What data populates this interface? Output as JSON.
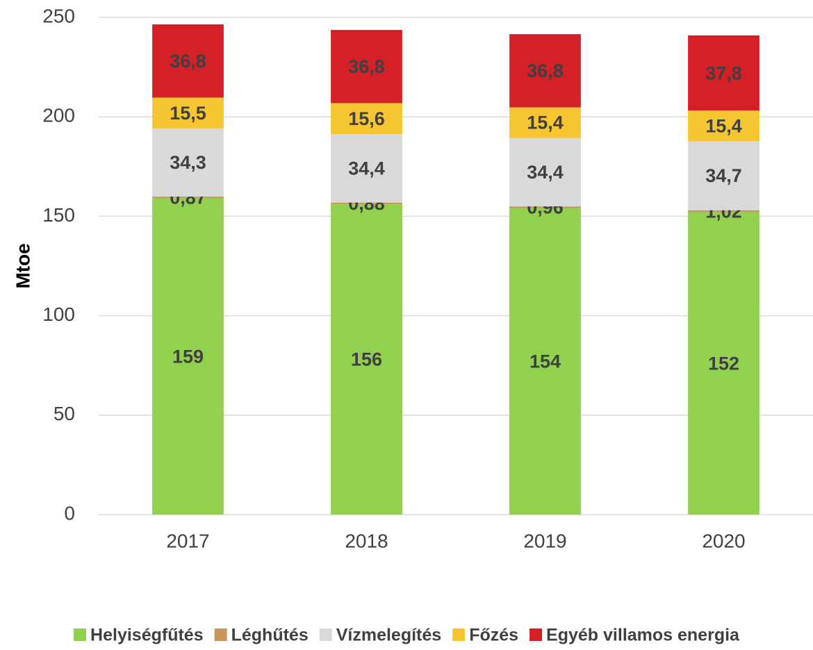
{
  "chart_data": {
    "type": "stacked_bar",
    "y_label": "Mtoe",
    "categories": [
      "2017",
      "2018",
      "2019",
      "2020"
    ],
    "series": [
      {
        "name": "Helyiségfűtés",
        "color": "#92d050",
        "values": [
          159,
          156,
          154,
          152
        ]
      },
      {
        "name": "Léghűtés",
        "color": "#c9965c",
        "values": [
          0.87,
          0.88,
          0.96,
          1.02
        ],
        "value_labels": [
          "0,87",
          "0,88",
          "0,96",
          "1,02"
        ]
      },
      {
        "name": "Vízmelegítés",
        "color": "#d9d9d9",
        "values": [
          34.3,
          34.4,
          34.4,
          34.7
        ],
        "value_labels": [
          "34,3",
          "34,4",
          "34,4",
          "34,7"
        ]
      },
      {
        "name": "Főzés",
        "color": "#f5c631",
        "values": [
          15.5,
          15.6,
          15.4,
          15.4
        ],
        "value_labels": [
          "15,5",
          "15,6",
          "15,4",
          "15,4"
        ]
      },
      {
        "name": "Egyéb villamos energia",
        "color": "#d42027",
        "values": [
          36.8,
          36.8,
          36.8,
          37.8
        ],
        "value_labels": [
          "36,8",
          "36,8",
          "36,8",
          "37,8"
        ]
      }
    ],
    "ylim": [
      0,
      250
    ],
    "yticks": [
      0,
      50,
      100,
      150,
      200,
      250
    ],
    "grid": true,
    "legend": "bottom"
  }
}
